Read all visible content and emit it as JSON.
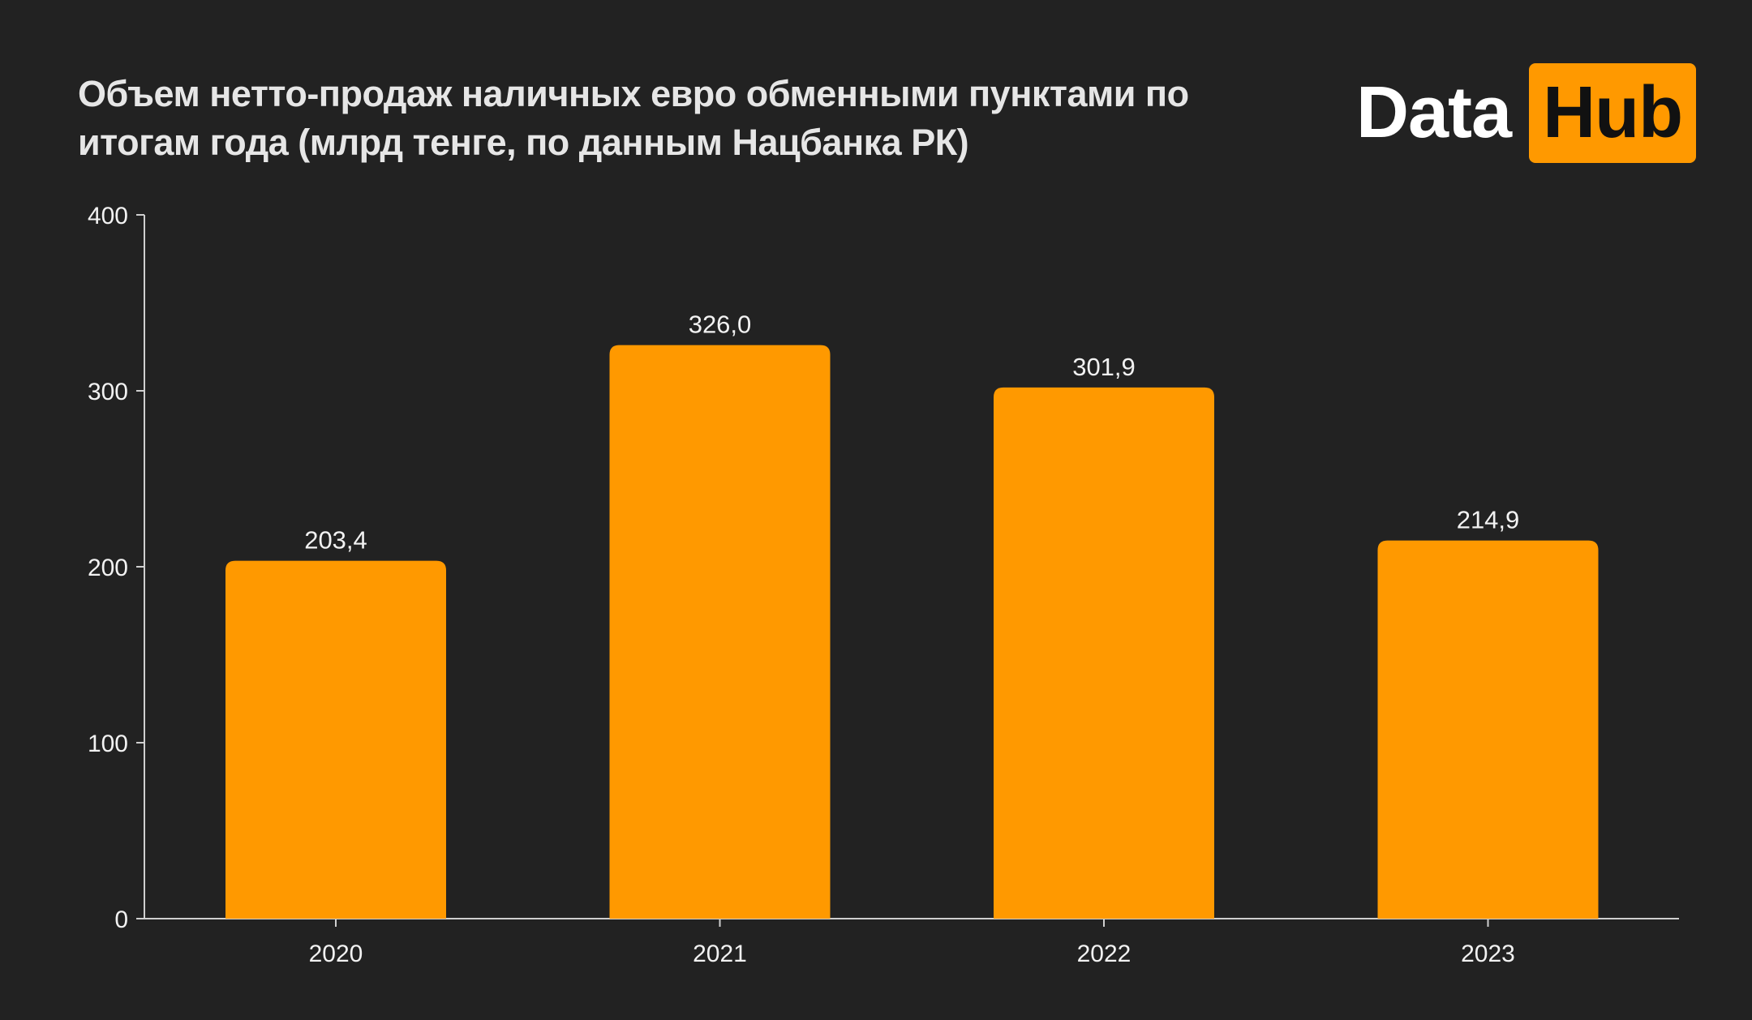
{
  "header": {
    "title_line1": "Объем нетто-продаж наличных евро обменными пунктами по",
    "title_line2": "итогам года (млрд тенге, по данным Нацбанка РК)"
  },
  "logo": {
    "part1": "Data",
    "part2": "Hub"
  },
  "colors": {
    "background": "#222222",
    "bar": "#ff9900",
    "axis": "#cfcfcf",
    "text": "#f2f2f2"
  },
  "chart_data": {
    "type": "bar",
    "title": "Объем нетто-продаж наличных евро обменными пунктами по итогам года (млрд тенге, по данным Нацбанка РК)",
    "categories": [
      "2020",
      "2021",
      "2022",
      "2023"
    ],
    "values": [
      203.4,
      326.0,
      301.9,
      214.9
    ],
    "value_labels": [
      "203,4",
      "326,0",
      "301,9",
      "214,9"
    ],
    "xlabel": "",
    "ylabel": "",
    "ylim": [
      0,
      400
    ],
    "yticks": [
      0,
      100,
      200,
      300,
      400
    ],
    "grid": false,
    "legend": "none"
  }
}
